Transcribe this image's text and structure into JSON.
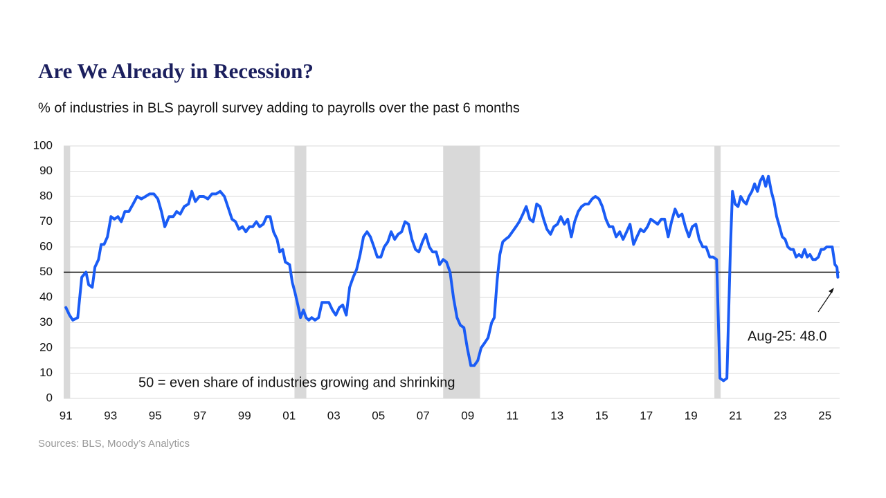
{
  "chart_data": {
    "type": "line",
    "title": "Are We Already in Recession?",
    "subtitle": "% of industries in BLS payroll survey adding to payrolls over the past 6 months",
    "source": "Sources: BLS, Moody’s Analytics",
    "annotations": [
      "50 = even share of industries growing and shrinking",
      "Aug-25: 48.0"
    ],
    "color": "#1a5cf5",
    "grid": true,
    "hline": 50,
    "recessions": [
      [
        1990.9,
        1991.19
      ],
      [
        2001.24,
        2001.77
      ],
      [
        2007.9,
        2009.55
      ],
      [
        2020.05,
        2020.33
      ]
    ],
    "xlim": [
      1990.9,
      2025.66
    ],
    "ylim": [
      0,
      100
    ],
    "yticks": [
      0,
      10,
      20,
      30,
      40,
      50,
      60,
      70,
      80,
      90,
      100
    ],
    "xticks": [
      {
        "value": 1991,
        "label": "91"
      },
      {
        "value": 1993,
        "label": "93"
      },
      {
        "value": 1995,
        "label": "95"
      },
      {
        "value": 1997,
        "label": "97"
      },
      {
        "value": 1999,
        "label": "99"
      },
      {
        "value": 2001,
        "label": "01"
      },
      {
        "value": 2003,
        "label": "03"
      },
      {
        "value": 2005,
        "label": "05"
      },
      {
        "value": 2007,
        "label": "07"
      },
      {
        "value": 2009,
        "label": "09"
      },
      {
        "value": 2011,
        "label": "11"
      },
      {
        "value": 2013,
        "label": "13"
      },
      {
        "value": 2015,
        "label": "15"
      },
      {
        "value": 2017,
        "label": "17"
      },
      {
        "value": 2019,
        "label": "19"
      },
      {
        "value": 2021,
        "label": "21"
      },
      {
        "value": 2023,
        "label": "23"
      },
      {
        "value": 2025,
        "label": "25"
      }
    ],
    "x": [
      1991.0,
      1991.16,
      1991.31,
      1991.53,
      1991.71,
      1991.9,
      1992.02,
      1992.18,
      1992.3,
      1992.46,
      1992.58,
      1992.71,
      1992.86,
      1993.02,
      1993.17,
      1993.33,
      1993.48,
      1993.64,
      1993.82,
      1994.01,
      1994.19,
      1994.38,
      1994.57,
      1994.75,
      1994.94,
      1995.12,
      1995.28,
      1995.43,
      1995.62,
      1995.81,
      1995.96,
      1996.12,
      1996.3,
      1996.49,
      1996.64,
      1996.8,
      1996.98,
      1997.17,
      1997.36,
      1997.54,
      1997.73,
      1997.91,
      1998.1,
      1998.29,
      1998.44,
      1998.6,
      1998.75,
      1998.91,
      1999.06,
      1999.22,
      1999.37,
      1999.53,
      1999.68,
      1999.84,
      1999.99,
      2000.15,
      2000.3,
      2000.46,
      2000.58,
      2000.71,
      2000.83,
      2001.02,
      2001.14,
      2001.26,
      2001.39,
      2001.51,
      2001.64,
      2001.76,
      2001.88,
      2002.01,
      2002.16,
      2002.32,
      2002.47,
      2002.63,
      2002.78,
      2002.94,
      2003.09,
      2003.25,
      2003.4,
      2003.56,
      2003.71,
      2003.87,
      2004.02,
      2004.18,
      2004.33,
      2004.49,
      2004.64,
      2004.8,
      2004.95,
      2005.11,
      2005.26,
      2005.42,
      2005.57,
      2005.73,
      2005.88,
      2006.04,
      2006.19,
      2006.35,
      2006.5,
      2006.66,
      2006.81,
      2006.97,
      2007.12,
      2007.28,
      2007.43,
      2007.59,
      2007.74,
      2007.9,
      2008.05,
      2008.21,
      2008.36,
      2008.52,
      2008.67,
      2008.83,
      2008.98,
      2009.14,
      2009.29,
      2009.45,
      2009.6,
      2009.76,
      2009.91,
      2010.07,
      2010.19,
      2010.32,
      2010.44,
      2010.57,
      2010.69,
      2010.84,
      2011.0,
      2011.16,
      2011.31,
      2011.47,
      2011.62,
      2011.78,
      2011.93,
      2012.09,
      2012.24,
      2012.4,
      2012.55,
      2012.71,
      2012.86,
      2013.02,
      2013.17,
      2013.33,
      2013.48,
      2013.64,
      2013.79,
      2013.95,
      2014.1,
      2014.26,
      2014.41,
      2014.57,
      2014.72,
      2014.88,
      2015.03,
      2015.19,
      2015.34,
      2015.5,
      2015.65,
      2015.81,
      2015.96,
      2016.12,
      2016.27,
      2016.43,
      2016.58,
      2016.74,
      2016.89,
      2017.05,
      2017.2,
      2017.36,
      2017.51,
      2017.67,
      2017.82,
      2017.98,
      2018.13,
      2018.29,
      2018.44,
      2018.6,
      2018.75,
      2018.91,
      2019.06,
      2019.22,
      2019.37,
      2019.53,
      2019.68,
      2019.84,
      2019.99,
      2020.15,
      2020.3,
      2020.46,
      2020.61,
      2020.77,
      2020.86,
      2020.98,
      2021.11,
      2021.23,
      2021.36,
      2021.48,
      2021.6,
      2021.73,
      2021.85,
      2021.98,
      2022.1,
      2022.22,
      2022.35,
      2022.47,
      2022.6,
      2022.72,
      2022.84,
      2022.97,
      2023.09,
      2023.22,
      2023.34,
      2023.47,
      2023.59,
      2023.71,
      2023.84,
      2023.96,
      2024.09,
      2024.21,
      2024.33,
      2024.46,
      2024.58,
      2024.71,
      2024.83,
      2024.95,
      2025.08,
      2025.2,
      2025.33,
      2025.45,
      2025.54,
      2025.58
    ],
    "values": [
      36,
      33,
      31,
      32,
      48,
      50,
      45,
      44,
      52,
      55,
      61,
      61,
      64,
      72,
      71,
      72,
      70,
      74,
      74,
      77,
      80,
      79,
      80,
      81,
      81,
      79,
      74,
      68,
      72,
      72,
      74,
      73,
      76,
      77,
      82,
      78,
      80,
      80,
      79,
      81,
      81,
      82,
      80,
      75,
      71,
      70,
      67,
      68,
      66,
      68,
      68,
      70,
      68,
      69,
      72,
      72,
      66,
      63,
      58,
      59,
      54,
      53,
      46,
      42,
      37,
      32,
      35,
      32,
      31,
      32,
      31,
      32,
      38,
      38,
      38,
      35,
      33,
      36,
      37,
      33,
      44,
      48,
      51,
      57,
      64,
      66,
      64,
      60,
      56,
      56,
      60,
      62,
      66,
      63,
      65,
      66,
      70,
      69,
      63,
      59,
      58,
      62,
      65,
      60,
      58,
      58,
      53,
      55,
      54,
      50,
      40,
      32,
      29,
      28,
      20,
      13,
      13,
      15,
      20,
      22,
      24,
      30,
      32,
      47,
      57,
      62,
      63,
      64,
      66,
      68,
      70,
      73,
      76,
      71,
      70,
      77,
      76,
      71,
      67,
      65,
      68,
      69,
      72,
      69,
      71,
      64,
      70,
      74,
      76,
      77,
      77,
      79,
      80,
      79,
      76,
      71,
      68,
      68,
      64,
      66,
      63,
      66,
      69,
      61,
      64,
      67,
      66,
      68,
      71,
      70,
      69,
      71,
      71,
      64,
      70,
      75,
      72,
      73,
      68,
      64,
      68,
      69,
      63,
      60,
      60,
      56,
      56,
      55,
      8,
      7,
      8,
      60,
      82,
      77,
      76,
      80,
      78,
      77,
      80,
      82,
      85,
      82,
      86,
      88,
      84,
      88,
      82,
      78,
      72,
      68,
      64,
      63,
      60,
      59,
      59,
      56,
      57,
      56,
      59,
      56,
      57,
      55,
      55,
      56,
      59,
      59,
      60,
      60,
      60,
      53,
      52,
      48.0
    ]
  }
}
